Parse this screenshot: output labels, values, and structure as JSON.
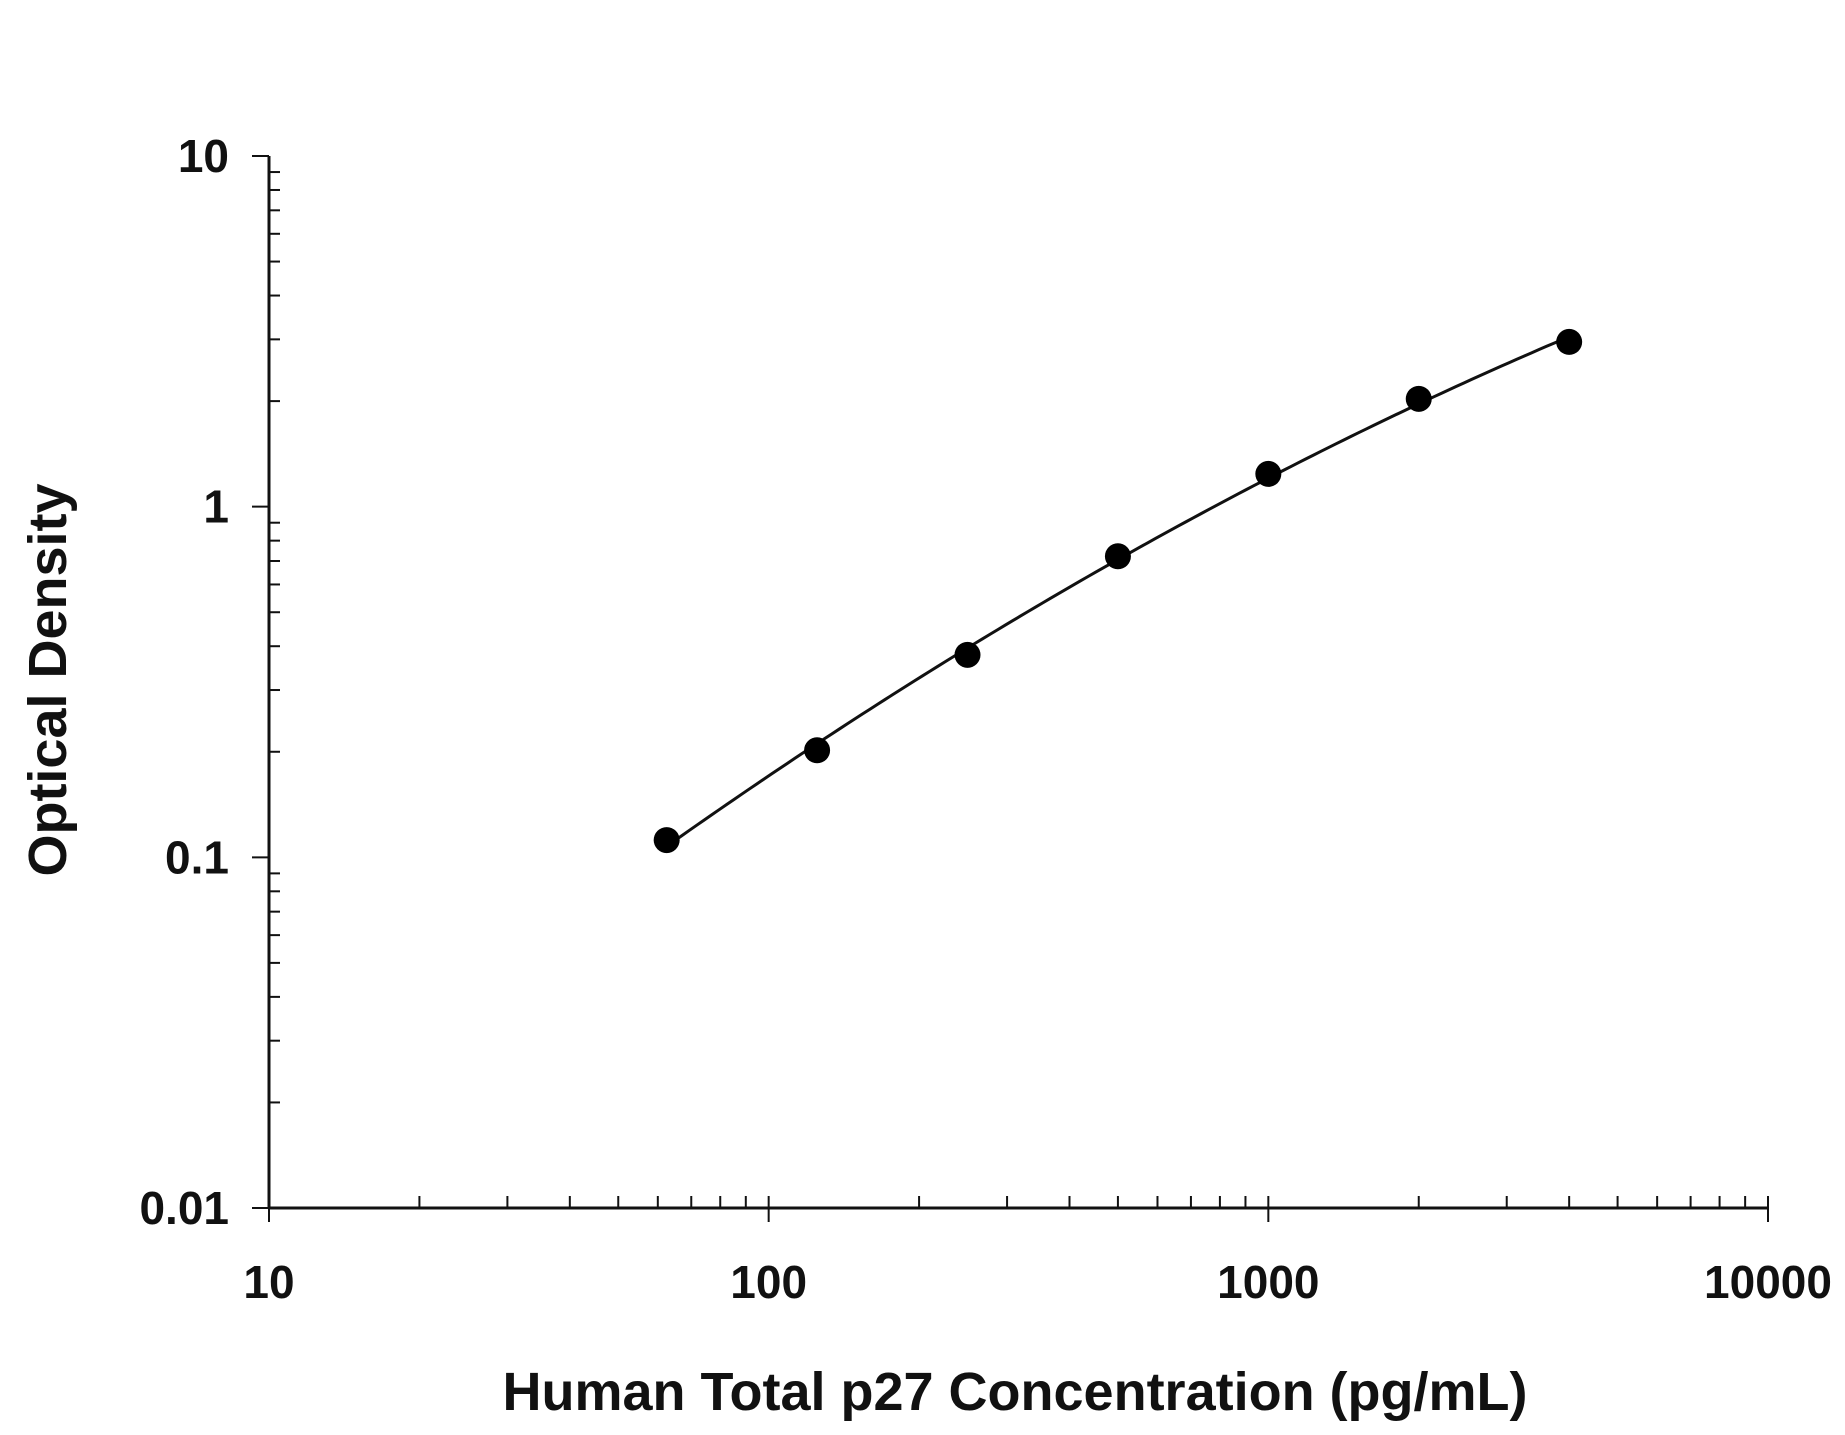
{
  "chart_data": {
    "type": "scatter",
    "title": "",
    "xlabel": "Human Total p27 Concentration (pg/mL)",
    "ylabel": "Optical Density",
    "x_scale": "log",
    "y_scale": "log",
    "xlim": [
      10,
      10000
    ],
    "ylim": [
      0.01,
      10
    ],
    "x_ticks": [
      "10",
      "100",
      "1000",
      "10000"
    ],
    "y_ticks": [
      "10",
      "1",
      "0.1",
      "0.01"
    ],
    "grid": false,
    "legend": "none",
    "series": [
      {
        "x": [
          62.5,
          125,
          250,
          500,
          1000,
          2000,
          4000
        ],
        "y": [
          0.112,
          0.202,
          0.378,
          0.722,
          1.24,
          2.03,
          2.95
        ],
        "marker": "filled-circle",
        "fit_curve": true
      }
    ],
    "colors": {
      "axis": "#111111",
      "marker": "#000000",
      "curve": "#111111"
    }
  }
}
